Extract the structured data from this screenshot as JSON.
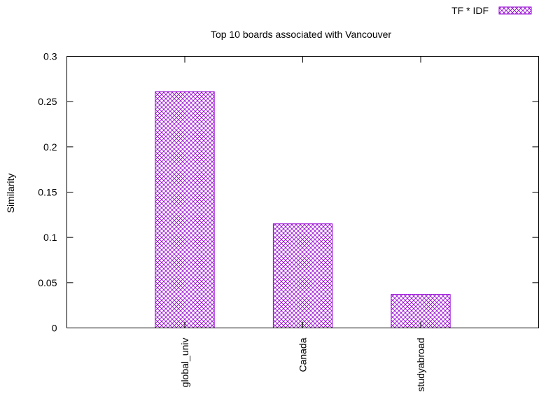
{
  "chart_data": {
    "type": "bar",
    "title": "Top 10 boards associated with Vancouver",
    "xlabel": "",
    "ylabel": "Similarity",
    "categories": [
      "global_univ",
      "Canada",
      "studyabroad"
    ],
    "series": [
      {
        "name": "TF * IDF",
        "values": [
          0.261,
          0.115,
          0.037
        ]
      }
    ],
    "ylim": [
      0,
      0.3
    ],
    "yticks": [
      "0",
      "0.05",
      "0.1",
      "0.15",
      "0.2",
      "0.25",
      "0.3"
    ],
    "grid": false,
    "legend_position": "top-right",
    "bar_pattern": "crosshatch",
    "colors": {
      "bar": "#9400d3",
      "axis": "#000000",
      "background": "#ffffff"
    }
  }
}
